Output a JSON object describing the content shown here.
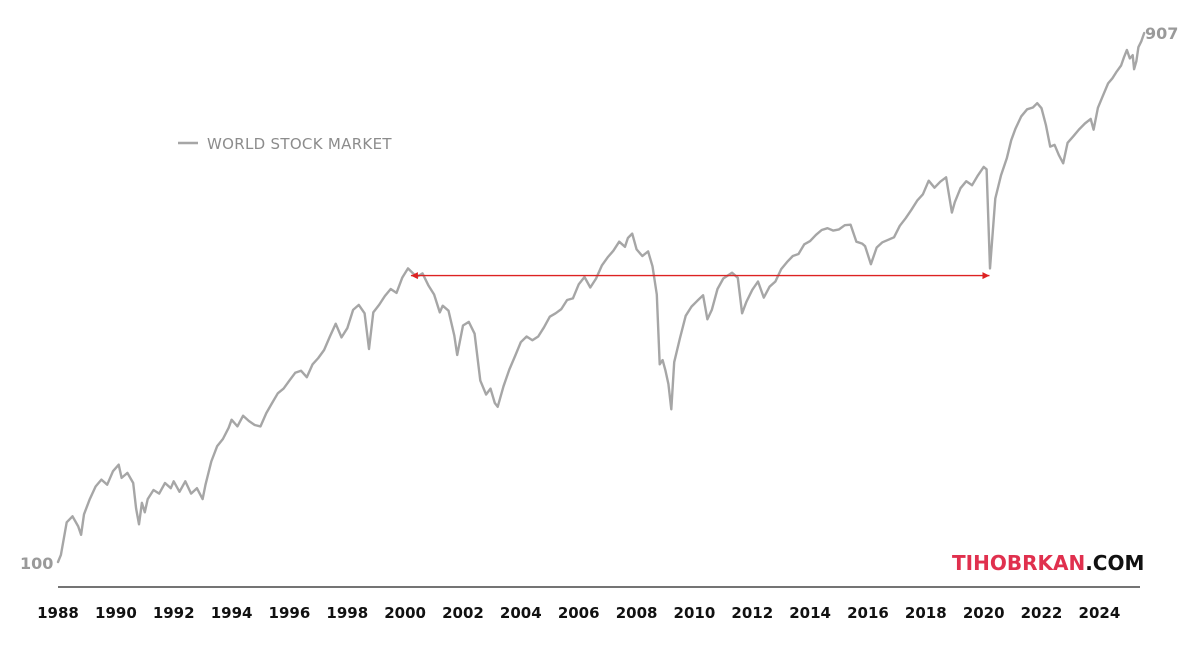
{
  "chart_data": {
    "type": "line",
    "title": "",
    "xlabel": "",
    "ylabel": "",
    "xlim": [
      1988,
      2025.3
    ],
    "ylim": [
      100,
      907
    ],
    "y_scale": "log",
    "grid": false,
    "legend": {
      "position": "top-left",
      "entries": [
        "WORLD STOCK MARKET"
      ]
    },
    "x_ticks": [
      "1988",
      "1990",
      "1992",
      "1994",
      "1996",
      "1998",
      "2000",
      "2002",
      "2004",
      "2006",
      "2008",
      "2010",
      "2012",
      "2014",
      "2016",
      "2018",
      "2020",
      "2022",
      "2024"
    ],
    "start_label": "100",
    "end_label": "907",
    "series": [
      {
        "name": "WORLD STOCK MARKET",
        "color": "#a6a6a6",
        "points": [
          [
            1988.0,
            100
          ],
          [
            1988.1,
            103
          ],
          [
            1988.3,
            118
          ],
          [
            1988.5,
            121
          ],
          [
            1988.7,
            116
          ],
          [
            1988.8,
            112
          ],
          [
            1988.9,
            122
          ],
          [
            1989.1,
            130
          ],
          [
            1989.3,
            137
          ],
          [
            1989.5,
            141
          ],
          [
            1989.7,
            138
          ],
          [
            1989.9,
            146
          ],
          [
            1990.1,
            150
          ],
          [
            1990.2,
            142
          ],
          [
            1990.4,
            145
          ],
          [
            1990.6,
            139
          ],
          [
            1990.7,
            125
          ],
          [
            1990.8,
            117
          ],
          [
            1990.9,
            128
          ],
          [
            1991.0,
            123
          ],
          [
            1991.1,
            130
          ],
          [
            1991.3,
            135
          ],
          [
            1991.5,
            133
          ],
          [
            1991.7,
            139
          ],
          [
            1991.9,
            136
          ],
          [
            1992.0,
            140
          ],
          [
            1992.2,
            134
          ],
          [
            1992.4,
            140
          ],
          [
            1992.6,
            133
          ],
          [
            1992.8,
            136
          ],
          [
            1993.0,
            130
          ],
          [
            1993.1,
            138
          ],
          [
            1993.3,
            152
          ],
          [
            1993.5,
            162
          ],
          [
            1993.7,
            167
          ],
          [
            1993.9,
            175
          ],
          [
            1994.0,
            181
          ],
          [
            1994.2,
            176
          ],
          [
            1994.4,
            184
          ],
          [
            1994.6,
            180
          ],
          [
            1994.8,
            177
          ],
          [
            1995.0,
            176
          ],
          [
            1995.2,
            186
          ],
          [
            1995.4,
            194
          ],
          [
            1995.6,
            202
          ],
          [
            1995.8,
            206
          ],
          [
            1996.0,
            213
          ],
          [
            1996.2,
            220
          ],
          [
            1996.4,
            222
          ],
          [
            1996.6,
            216
          ],
          [
            1996.8,
            228
          ],
          [
            1997.0,
            234
          ],
          [
            1997.2,
            242
          ],
          [
            1997.4,
            256
          ],
          [
            1997.6,
            270
          ],
          [
            1997.8,
            255
          ],
          [
            1998.0,
            265
          ],
          [
            1998.2,
            286
          ],
          [
            1998.4,
            292
          ],
          [
            1998.6,
            282
          ],
          [
            1998.75,
            243
          ],
          [
            1998.9,
            283
          ],
          [
            1999.1,
            292
          ],
          [
            1999.3,
            303
          ],
          [
            1999.5,
            312
          ],
          [
            1999.7,
            307
          ],
          [
            1999.9,
            327
          ],
          [
            2000.1,
            340
          ],
          [
            2000.2,
            336
          ],
          [
            2000.4,
            328
          ],
          [
            2000.6,
            333
          ],
          [
            2000.8,
            317
          ],
          [
            2001.0,
            305
          ],
          [
            2001.2,
            283
          ],
          [
            2001.3,
            291
          ],
          [
            2001.5,
            285
          ],
          [
            2001.7,
            257
          ],
          [
            2001.8,
            237
          ],
          [
            2002.0,
            268
          ],
          [
            2002.2,
            272
          ],
          [
            2002.4,
            259
          ],
          [
            2002.6,
            213
          ],
          [
            2002.8,
            201
          ],
          [
            2002.95,
            206
          ],
          [
            2003.1,
            194
          ],
          [
            2003.2,
            191
          ],
          [
            2003.4,
            208
          ],
          [
            2003.6,
            223
          ],
          [
            2003.8,
            236
          ],
          [
            2004.0,
            250
          ],
          [
            2004.2,
            256
          ],
          [
            2004.4,
            252
          ],
          [
            2004.6,
            256
          ],
          [
            2004.8,
            266
          ],
          [
            2005.0,
            278
          ],
          [
            2005.2,
            282
          ],
          [
            2005.4,
            287
          ],
          [
            2005.6,
            298
          ],
          [
            2005.8,
            300
          ],
          [
            2006.0,
            318
          ],
          [
            2006.2,
            328
          ],
          [
            2006.4,
            314
          ],
          [
            2006.6,
            326
          ],
          [
            2006.8,
            344
          ],
          [
            2007.0,
            356
          ],
          [
            2007.2,
            366
          ],
          [
            2007.4,
            380
          ],
          [
            2007.6,
            372
          ],
          [
            2007.7,
            386
          ],
          [
            2007.85,
            393
          ],
          [
            2008.0,
            368
          ],
          [
            2008.2,
            358
          ],
          [
            2008.4,
            365
          ],
          [
            2008.55,
            343
          ],
          [
            2008.7,
            305
          ],
          [
            2008.8,
            228
          ],
          [
            2008.9,
            232
          ],
          [
            2009.0,
            222
          ],
          [
            2009.1,
            210
          ],
          [
            2009.2,
            189
          ],
          [
            2009.3,
            230
          ],
          [
            2009.5,
            254
          ],
          [
            2009.7,
            279
          ],
          [
            2009.9,
            290
          ],
          [
            2010.1,
            297
          ],
          [
            2010.3,
            304
          ],
          [
            2010.45,
            275
          ],
          [
            2010.6,
            286
          ],
          [
            2010.8,
            312
          ],
          [
            2011.0,
            326
          ],
          [
            2011.3,
            334
          ],
          [
            2011.5,
            327
          ],
          [
            2011.65,
            282
          ],
          [
            2011.8,
            296
          ],
          [
            2012.0,
            311
          ],
          [
            2012.2,
            322
          ],
          [
            2012.4,
            301
          ],
          [
            2012.6,
            315
          ],
          [
            2012.8,
            322
          ],
          [
            2013.0,
            339
          ],
          [
            2013.2,
            349
          ],
          [
            2013.4,
            358
          ],
          [
            2013.6,
            361
          ],
          [
            2013.8,
            376
          ],
          [
            2014.0,
            381
          ],
          [
            2014.2,
            391
          ],
          [
            2014.4,
            399
          ],
          [
            2014.6,
            402
          ],
          [
            2014.8,
            398
          ],
          [
            2015.0,
            400
          ],
          [
            2015.2,
            407
          ],
          [
            2015.4,
            408
          ],
          [
            2015.6,
            380
          ],
          [
            2015.8,
            377
          ],
          [
            2015.9,
            373
          ],
          [
            2016.1,
            346
          ],
          [
            2016.3,
            371
          ],
          [
            2016.5,
            379
          ],
          [
            2016.7,
            383
          ],
          [
            2016.9,
            387
          ],
          [
            2017.1,
            406
          ],
          [
            2017.3,
            419
          ],
          [
            2017.5,
            434
          ],
          [
            2017.7,
            451
          ],
          [
            2017.9,
            463
          ],
          [
            2018.1,
            490
          ],
          [
            2018.3,
            476
          ],
          [
            2018.5,
            488
          ],
          [
            2018.7,
            497
          ],
          [
            2018.9,
            429
          ],
          [
            2019.0,
            448
          ],
          [
            2019.2,
            475
          ],
          [
            2019.4,
            489
          ],
          [
            2019.6,
            481
          ],
          [
            2019.8,
            501
          ],
          [
            2020.0,
            519
          ],
          [
            2020.1,
            514
          ],
          [
            2020.22,
            340
          ],
          [
            2020.4,
            455
          ],
          [
            2020.6,
            501
          ],
          [
            2020.8,
            538
          ],
          [
            2020.95,
            580
          ],
          [
            2021.1,
            609
          ],
          [
            2021.3,
            641
          ],
          [
            2021.5,
            660
          ],
          [
            2021.7,
            665
          ],
          [
            2021.85,
            677
          ],
          [
            2022.0,
            663
          ],
          [
            2022.15,
            618
          ],
          [
            2022.3,
            565
          ],
          [
            2022.45,
            569
          ],
          [
            2022.6,
            545
          ],
          [
            2022.75,
            527
          ],
          [
            2022.9,
            574
          ],
          [
            2023.1,
            590
          ],
          [
            2023.3,
            607
          ],
          [
            2023.5,
            622
          ],
          [
            2023.7,
            634
          ],
          [
            2023.8,
            606
          ],
          [
            2023.95,
            664
          ],
          [
            2024.1,
            694
          ],
          [
            2024.3,
            735
          ],
          [
            2024.45,
            751
          ],
          [
            2024.6,
            773
          ],
          [
            2024.75,
            792
          ],
          [
            2024.85,
            820
          ],
          [
            2024.95,
            845
          ],
          [
            2025.05,
            816
          ],
          [
            2025.15,
            827
          ],
          [
            2025.2,
            780
          ],
          [
            2025.28,
            807
          ],
          [
            2025.35,
            855
          ],
          [
            2025.45,
            876
          ],
          [
            2025.55,
            907
          ]
        ]
      }
    ],
    "annotations": [
      {
        "type": "arrow",
        "color": "#dd2222",
        "x_from": 2000.2,
        "x_to": 2020.2,
        "y": 330
      }
    ]
  },
  "branding": {
    "text_red": "TIHOBRKAN",
    "text_black": ".COM"
  },
  "colors": {
    "line": "#a6a6a6",
    "arrow": "#dd2222",
    "brand_red": "#e0304e",
    "axis": "#222222"
  }
}
